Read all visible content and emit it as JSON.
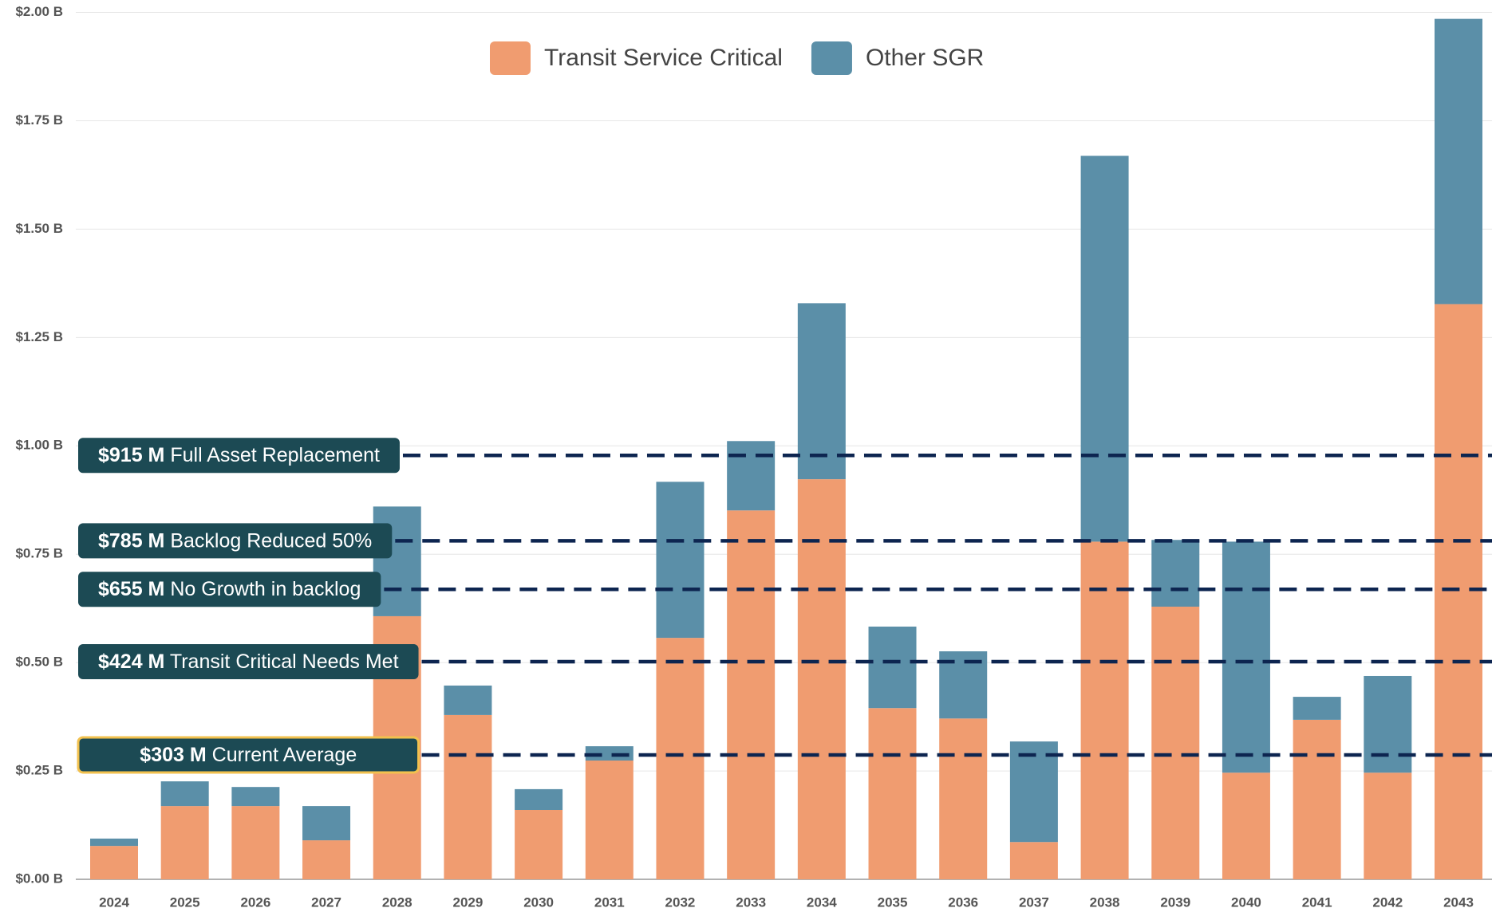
{
  "chart_data": {
    "type": "stacked_bar",
    "categories": [
      "2024",
      "2025",
      "2026",
      "2027",
      "2028",
      "2029",
      "2030",
      "2031",
      "2032",
      "2033",
      "2034",
      "2035",
      "2036",
      "2037",
      "2038",
      "2039",
      "2040",
      "2041",
      "2042",
      "2043"
    ],
    "series": [
      {
        "name": "Transit Service Critical",
        "color": "#f09c70",
        "values": [
          0.077,
          0.169,
          0.169,
          0.09,
          0.607,
          0.379,
          0.16,
          0.274,
          0.557,
          0.851,
          0.923,
          0.395,
          0.371,
          0.086,
          0.779,
          0.629,
          0.246,
          0.368,
          0.246,
          1.327
        ]
      },
      {
        "name": "Other SGR",
        "color": "#5b8fa8",
        "values": [
          0.017,
          0.057,
          0.044,
          0.079,
          0.253,
          0.068,
          0.048,
          0.033,
          0.36,
          0.16,
          0.406,
          0.188,
          0.155,
          0.232,
          0.89,
          0.154,
          0.533,
          0.053,
          0.223,
          0.658
        ]
      }
    ],
    "ylim": [
      0,
      2.0
    ],
    "yticks": [
      {
        "value": 0,
        "label": "$0.00 B"
      },
      {
        "value": 0.25,
        "label": "$0.25 B"
      },
      {
        "value": 0.5,
        "label": "$0.50 B"
      },
      {
        "value": 0.75,
        "label": "$0.75 B"
      },
      {
        "value": 1.0,
        "label": "$1.00 B"
      },
      {
        "value": 1.25,
        "label": "$1.25 B"
      },
      {
        "value": 1.5,
        "label": "$1.50 B"
      },
      {
        "value": 1.75,
        "label": "$1.75 B"
      },
      {
        "value": 2.0,
        "label": "$2.00 B"
      }
    ],
    "grid": true,
    "legend": "top",
    "reference_lines": [
      {
        "amount": "$915 M",
        "text": "Full Asset Replacement",
        "value": 0.978
      },
      {
        "amount": "$785 M",
        "text": "Backlog Reduced 50%",
        "value": 0.781
      },
      {
        "amount": "$655 M",
        "text": "No Growth in backlog",
        "value": 0.669
      },
      {
        "amount": "$424 M",
        "text": "Transit Critical Needs Met",
        "value": 0.502
      },
      {
        "amount": "$303 M",
        "text": "Current Average",
        "value": 0.287,
        "highlight": true
      }
    ],
    "reference_color": "#0d2550",
    "label_box_color": "#1c4a54",
    "highlight_color": "#f2c14e"
  }
}
